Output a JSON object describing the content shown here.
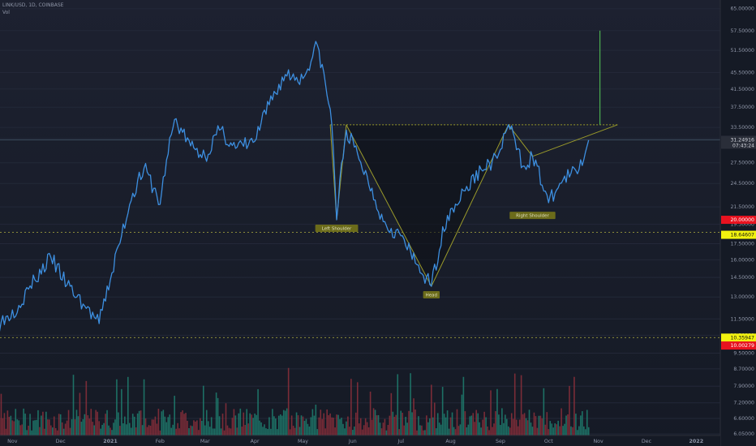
{
  "header": {
    "symbol_line": "LINK/USD, 1D, COINBASE",
    "volume_label": "Vol"
  },
  "colors": {
    "background": "#151a25",
    "price_line": "#3d8fe0",
    "pattern": "#9a9a2a",
    "breakout": "#4caf50",
    "volume_up": "#1f7f70",
    "volume_down": "#8c2f3b",
    "axis_text": "#8f96a8"
  },
  "chart_data": {
    "type": "line",
    "title": "",
    "y_scale": "log",
    "ylim": [
      6.0,
      67.0
    ],
    "y_ticks": [
      "6.05000",
      "6.60000",
      "7.20000",
      "7.90000",
      "8.70000",
      "9.50000",
      "10.50000",
      "11.50000",
      "13.00000",
      "14.50000",
      "16.00000",
      "17.50000",
      "19.50000",
      "21.50000",
      "24.50000",
      "27.50000",
      "31.50000",
      "33.50000",
      "37.50000",
      "41.50000",
      "45.50000",
      "51.50000",
      "57.50000",
      "65.00000"
    ],
    "x_ticks": [
      "Nov",
      "Dec",
      "2021",
      "Feb",
      "Mar",
      "Apr",
      "May",
      "Jun",
      "Jul",
      "Aug",
      "Sep",
      "Oct",
      "Nov",
      "Dec",
      "2022"
    ],
    "series": [
      {
        "x": [
          "2020-10-15",
          "2020-10-25",
          "2020-11-05",
          "2020-11-15",
          "2020-11-25",
          "2020-12-05",
          "2020-12-15",
          "2020-12-25",
          "2021-01-01",
          "2021-01-08",
          "2021-01-15",
          "2021-01-22",
          "2021-02-01",
          "2021-02-10",
          "2021-02-20",
          "2021-03-01",
          "2021-03-10",
          "2021-03-20",
          "2021-04-01",
          "2021-04-10",
          "2021-04-20",
          "2021-05-01",
          "2021-05-10",
          "2021-05-19",
          "2021-05-22",
          "2021-05-28",
          "2021-06-05",
          "2021-06-20",
          "2021-07-01",
          "2021-07-10",
          "2021-07-20",
          "2021-07-30",
          "2021-08-10",
          "2021-08-20",
          "2021-08-30",
          "2021-09-06",
          "2021-09-15",
          "2021-09-21",
          "2021-10-01",
          "2021-10-10",
          "2021-10-20",
          "2021-10-26"
        ],
        "values": [
          10.4,
          11.3,
          12.4,
          14.3,
          16.2,
          13.9,
          12.5,
          11.2,
          14.3,
          18.3,
          23.2,
          26.7,
          21.8,
          35.0,
          30.2,
          28.5,
          33.0,
          29.8,
          31.0,
          38.0,
          45.0,
          44.0,
          53.0,
          34.0,
          20.0,
          33.0,
          28.0,
          19.8,
          18.3,
          15.7,
          13.8,
          20.5,
          23.5,
          26.5,
          28.2,
          34.0,
          27.0,
          28.5,
          22.0,
          25.0,
          26.5,
          31.2
        ]
      }
    ],
    "pattern": {
      "name": "Inverse Head and Shoulders",
      "neckline": 34.0,
      "labels": [
        {
          "text": "Left Shoulder",
          "x": "2021-05-22",
          "y": 20.0
        },
        {
          "text": "Head",
          "x": "2021-07-20",
          "y": 13.8
        },
        {
          "text": "Right Shoulder",
          "x": "2021-09-21",
          "y": 21.5
        }
      ],
      "breakout_target": {
        "x": "2021-11-02",
        "from": 34.0,
        "to": 57.5
      }
    },
    "horizontal_levels": [
      18.64607,
      10.35947
    ],
    "price_labels": [
      {
        "text": "31.24916",
        "sub": "07:43:24",
        "value": 31.24916,
        "bg": "#2a2e39",
        "fg": "#d1d4dc"
      },
      {
        "text": "20.00000",
        "value": 20.0,
        "bg": "#e8121f",
        "fg": "#ffffff"
      },
      {
        "text": "18.64607",
        "value": 18.64607,
        "bg": "#f2f20f",
        "fg": "#111111"
      },
      {
        "text": "10.35947",
        "value": 10.35947,
        "bg": "#f2f20f",
        "fg": "#111111"
      },
      {
        "text": "10.00279",
        "value": 10.00279,
        "bg": "#e8121f",
        "fg": "#ffffff"
      }
    ]
  }
}
